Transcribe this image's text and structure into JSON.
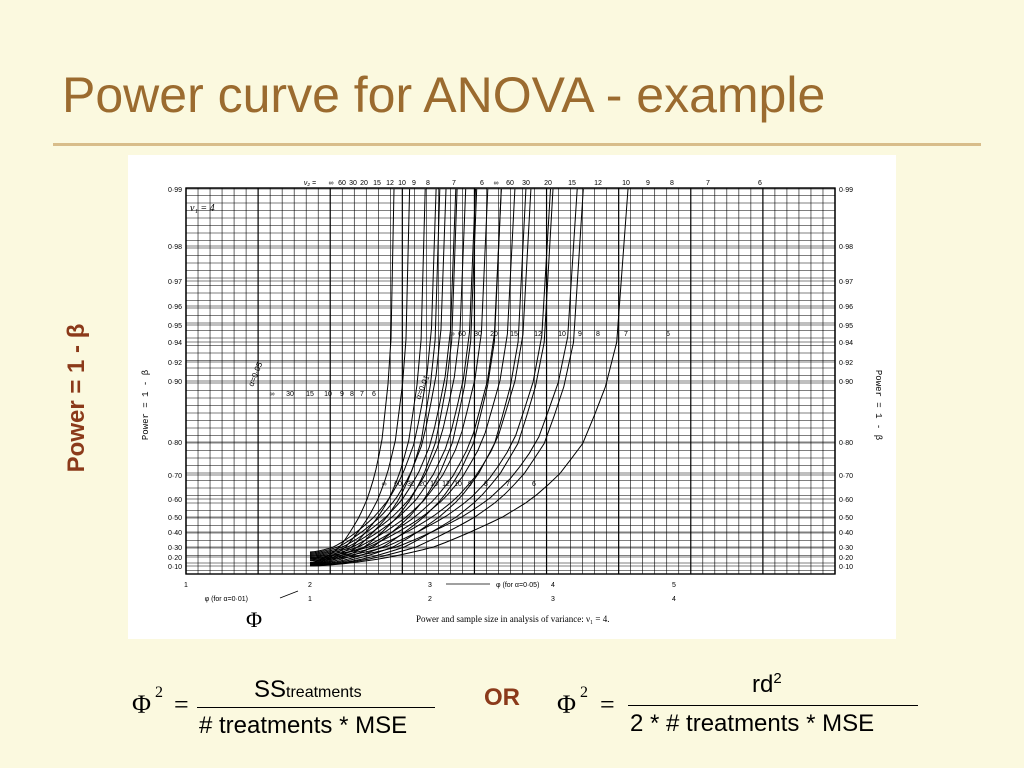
{
  "slide": {
    "title": "Power curve for ANOVA - example",
    "side_label": "Power = 1 - β",
    "phi_symbol": "Φ",
    "formula_left": {
      "lhs": "Φ",
      "exponent": "2",
      "equals": "=",
      "numerator": "SS",
      "numerator_sub": "treatments",
      "denominator": "# treatments * MSE"
    },
    "or_text": "OR",
    "formula_right": {
      "lhs": "Φ",
      "exponent": "2",
      "equals": "=",
      "numerator": "rd",
      "numerator_sup": "2",
      "denominator": "2 * # treatments * MSE"
    },
    "colors": {
      "title": "#9b6b2f",
      "accent": "#8b3a1a",
      "background": "#fbf9df",
      "rule": "#d8bd8a"
    }
  },
  "chart_data": {
    "type": "line",
    "title": "",
    "caption": "Power and sample size in analysis of variance: ν₁ = 4.",
    "nu1_label": "ν₁ = 4",
    "nu2_label": "ν₂ =",
    "ylabel": "Power = 1 - β",
    "y_ticks": [
      "0·10",
      "0·20",
      "0·30",
      "0·40",
      "0·50",
      "0·60",
      "0·70",
      "0·80",
      "0·90",
      "0·92",
      "0·94",
      "0·95",
      "0·96",
      "0·97",
      "0·98",
      "0·99"
    ],
    "x_axis_01": {
      "label": "φ (for α=0·01)",
      "ticks": [
        "1",
        "2",
        "3",
        "4",
        "5"
      ],
      "values": [
        1,
        2,
        3,
        4,
        5
      ]
    },
    "x_axis_05": {
      "label": "φ (for α=0·05)",
      "ticks": [
        "1",
        "2",
        "3",
        "4"
      ],
      "values": [
        1,
        2,
        3,
        4
      ]
    },
    "alpha_labels": [
      "α=0·05",
      "α=0·01"
    ],
    "df_labels_top": [
      "∞",
      "60",
      "30",
      "20",
      "15",
      "12",
      "10",
      "9",
      "8",
      "7",
      "6",
      "∞",
      "60",
      "30",
      "20",
      "15",
      "12",
      "10",
      "9",
      "8",
      "7",
      "6"
    ],
    "df_labels_mid_01": [
      "∞",
      "60",
      "30",
      "20",
      "15",
      "12",
      "10",
      "9",
      "8",
      "7",
      "6"
    ],
    "df_labels_mid_05": [
      "∞",
      "30",
      "15",
      "10",
      "9",
      "8",
      "7",
      "6"
    ],
    "df_labels_low": [
      "∞",
      "60",
      "30",
      "20",
      "15",
      "12",
      "10",
      "9",
      "8",
      "7",
      "6"
    ],
    "alpha_05_family": {
      "phi_axis": "α=0·05",
      "start_phi": 1.0,
      "start_power": [
        0.25,
        0.24,
        0.23,
        0.22,
        0.21,
        0.2,
        0.19,
        0.19,
        0.18,
        0.17,
        0.16
      ],
      "power_099_phi": [
        2.05,
        2.13,
        2.21,
        2.29,
        2.37,
        2.47,
        2.58,
        2.69,
        2.82,
        2.98,
        3.2
      ]
    },
    "alpha_01_family": {
      "phi_axis": "α=0·01",
      "start_phi": 2.0,
      "start_power": [
        0.14,
        0.135,
        0.13,
        0.125,
        0.12,
        0.115,
        0.11,
        0.105,
        0.1,
        0.1,
        0.1
      ],
      "power_099_phi": [
        2.7,
        2.83,
        2.96,
        3.08,
        3.22,
        3.38,
        3.58,
        3.78,
        4.0,
        4.25,
        4.62
      ]
    }
  }
}
